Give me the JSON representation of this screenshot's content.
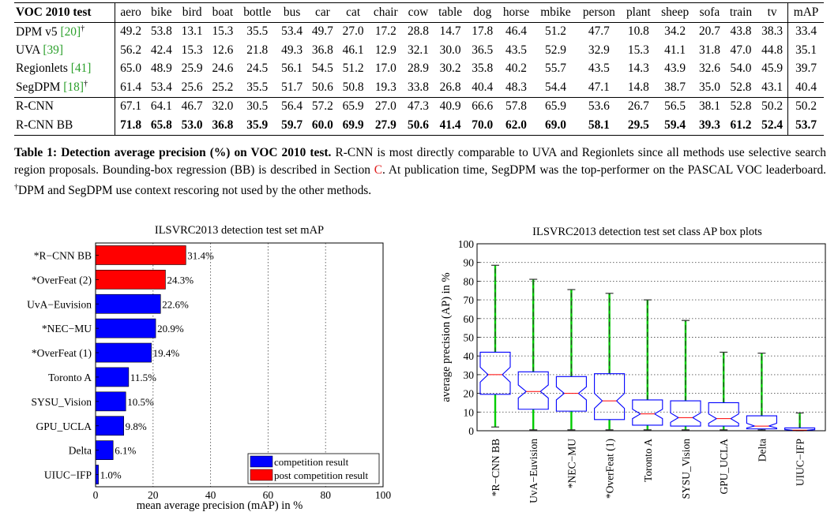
{
  "table": {
    "corner": "VOC 2010 test",
    "columns": [
      "aero",
      "bike",
      "bird",
      "boat",
      "bottle",
      "bus",
      "car",
      "cat",
      "chair",
      "cow",
      "table",
      "dog",
      "horse",
      "mbike",
      "person",
      "plant",
      "sheep",
      "sofa",
      "train",
      "tv",
      "mAP"
    ],
    "rows": [
      {
        "name": "DPM v5 ",
        "cite": "[20]",
        "sup": "†",
        "values": [
          "49.2",
          "53.8",
          "13.1",
          "15.3",
          "35.5",
          "53.4",
          "49.7",
          "27.0",
          "17.2",
          "28.8",
          "14.7",
          "17.8",
          "46.4",
          "51.2",
          "47.7",
          "10.8",
          "34.2",
          "20.7",
          "43.8",
          "38.3",
          "33.4"
        ]
      },
      {
        "name": "UVA ",
        "cite": "[39]",
        "sup": "",
        "values": [
          "56.2",
          "42.4",
          "15.3",
          "12.6",
          "21.8",
          "49.3",
          "36.8",
          "46.1",
          "12.9",
          "32.1",
          "30.0",
          "36.5",
          "43.5",
          "52.9",
          "32.9",
          "15.3",
          "41.1",
          "31.8",
          "47.0",
          "44.8",
          "35.1"
        ]
      },
      {
        "name": "Regionlets ",
        "cite": "[41]",
        "sup": "",
        "values": [
          "65.0",
          "48.9",
          "25.9",
          "24.6",
          "24.5",
          "56.1",
          "54.5",
          "51.2",
          "17.0",
          "28.9",
          "30.2",
          "35.8",
          "40.2",
          "55.7",
          "43.5",
          "14.3",
          "43.9",
          "32.6",
          "54.0",
          "45.9",
          "39.7"
        ]
      },
      {
        "name": "SegDPM ",
        "cite": "[18]",
        "sup": "†",
        "values": [
          "61.4",
          "53.4",
          "25.6",
          "25.2",
          "35.5",
          "51.7",
          "50.6",
          "50.8",
          "19.3",
          "33.8",
          "26.8",
          "40.4",
          "48.3",
          "54.4",
          "47.1",
          "14.8",
          "38.7",
          "35.0",
          "52.8",
          "43.1",
          "40.4"
        ]
      },
      {
        "name": "R-CNN",
        "cite": "",
        "sup": "",
        "values": [
          "67.1",
          "64.1",
          "46.7",
          "32.0",
          "30.5",
          "56.4",
          "57.2",
          "65.9",
          "27.0",
          "47.3",
          "40.9",
          "66.6",
          "57.8",
          "65.9",
          "53.6",
          "26.7",
          "56.5",
          "38.1",
          "52.8",
          "50.2",
          "50.2"
        ]
      },
      {
        "name": "R-CNN BB",
        "cite": "",
        "sup": "",
        "values": [
          "71.8",
          "65.8",
          "53.0",
          "36.8",
          "35.9",
          "59.7",
          "60.0",
          "69.9",
          "27.9",
          "50.6",
          "41.4",
          "70.0",
          "62.0",
          "69.0",
          "58.1",
          "29.5",
          "59.4",
          "39.3",
          "61.2",
          "52.4",
          "53.7"
        ]
      }
    ]
  },
  "caption": {
    "bold": "Table 1: Detection average precision (%) on VOC 2010 test.",
    "part1": " R-CNN is most directly comparable to UVA and Regionlets since all methods use selective search region proposals. Bounding-box regression (BB) is described in Section ",
    "section_ref": "C",
    "part2": ". At publication time, SegDPM was the top-performer on the PASCAL VOC leaderboard. ",
    "dagger": "†",
    "part3": "DPM and SegDPM use context rescoring not used by the other methods."
  },
  "chart_data": [
    {
      "type": "bar",
      "orientation": "horizontal",
      "title": "ILSVRC2013 detection test set mAP",
      "xlabel": "mean average precision (mAP) in %",
      "ylabel": "",
      "xlim": [
        0,
        100
      ],
      "xticks": [
        0,
        20,
        40,
        60,
        80,
        100
      ],
      "grid": true,
      "categories": [
        "*R−CNN BB",
        "*OverFeat (2)",
        "UvA−Euvision",
        "*NEC−MU",
        "*OverFeat (1)",
        "Toronto A",
        "SYSU_Vision",
        "GPU_UCLA",
        "Delta",
        "UIUC−IFP"
      ],
      "values": [
        31.4,
        24.3,
        22.6,
        20.9,
        19.4,
        11.5,
        10.5,
        9.8,
        6.1,
        1.0
      ],
      "value_labels": [
        "31.4%",
        "24.3%",
        "22.6%",
        "20.9%",
        "19.4%",
        "11.5%",
        "10.5%",
        "9.8%",
        "6.1%",
        "1.0%"
      ],
      "bar_groups": [
        "post",
        "post",
        "competition",
        "competition",
        "competition",
        "competition",
        "competition",
        "competition",
        "competition",
        "competition"
      ],
      "legend": {
        "placement": "bottom-right",
        "entries": [
          {
            "key": "competition",
            "label": "competition result",
            "color": "#0000ff"
          },
          {
            "key": "post",
            "label": "post competition result",
            "color": "#ff0000"
          }
        ]
      }
    },
    {
      "type": "boxplot",
      "title": "ILSVRC2013 detection test set class AP box plots",
      "xlabel": "",
      "ylabel": "average precision (AP) in %",
      "ylim": [
        0,
        100
      ],
      "yticks": [
        0,
        10,
        20,
        30,
        40,
        50,
        60,
        70,
        80,
        90,
        100
      ],
      "grid": true,
      "box_color": "#0000ff",
      "whisker_color": "#00cc00",
      "categories": [
        "*R−CNN BB",
        "UvA−Euvision",
        "*NEC−MU",
        "*OverFeat (1)",
        "Toronto A",
        "SYSU_Vision",
        "GPU_UCLA",
        "Delta",
        "UIUC−IFP"
      ],
      "boxes": [
        {
          "min": 2,
          "q1": 19.5,
          "median": 30,
          "q3": 42,
          "max": 88.5,
          "notch_lo": 26,
          "notch_hi": 34
        },
        {
          "min": 0.5,
          "q1": 11.5,
          "median": 21,
          "q3": 31.5,
          "max": 81,
          "notch_lo": 17.5,
          "notch_hi": 24.5
        },
        {
          "min": 0.5,
          "q1": 10.5,
          "median": 20,
          "q3": 29,
          "max": 75.5,
          "notch_lo": 16.5,
          "notch_hi": 23.5
        },
        {
          "min": 0.5,
          "q1": 6,
          "median": 16,
          "q3": 30.5,
          "max": 73.5,
          "notch_lo": 12,
          "notch_hi": 20
        },
        {
          "min": 0.5,
          "q1": 3,
          "median": 9,
          "q3": 16.5,
          "max": 70,
          "notch_lo": 6.5,
          "notch_hi": 11.5
        },
        {
          "min": 0.5,
          "q1": 2.5,
          "median": 7,
          "q3": 16,
          "max": 59,
          "notch_lo": 4.5,
          "notch_hi": 9.5
        },
        {
          "min": 0.5,
          "q1": 2.5,
          "median": 6.5,
          "q3": 15,
          "max": 42,
          "notch_lo": 4,
          "notch_hi": 9
        },
        {
          "min": 0.5,
          "q1": 1,
          "median": 2.5,
          "q3": 8,
          "max": 41.5,
          "notch_lo": 1.5,
          "notch_hi": 4
        },
        {
          "min": 0,
          "q1": 0,
          "median": 0.3,
          "q3": 1.5,
          "max": 9.5,
          "notch_lo": 0.1,
          "notch_hi": 0.7
        }
      ]
    }
  ]
}
